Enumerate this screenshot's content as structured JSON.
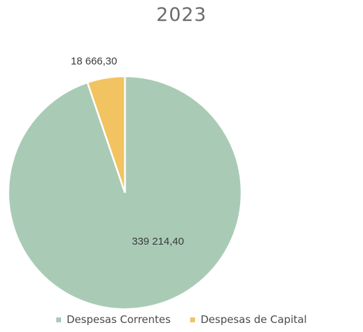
{
  "chart_data": {
    "type": "pie",
    "title": "2023",
    "categories": [
      "Despesas Correntes",
      "Despesas de Capital"
    ],
    "values": [
      339214.4,
      18666.3
    ],
    "data_labels": [
      "339 214,40",
      "18 666,30"
    ],
    "colors": [
      "#a9cbb5",
      "#f2c361"
    ],
    "legend_position": "bottom"
  }
}
